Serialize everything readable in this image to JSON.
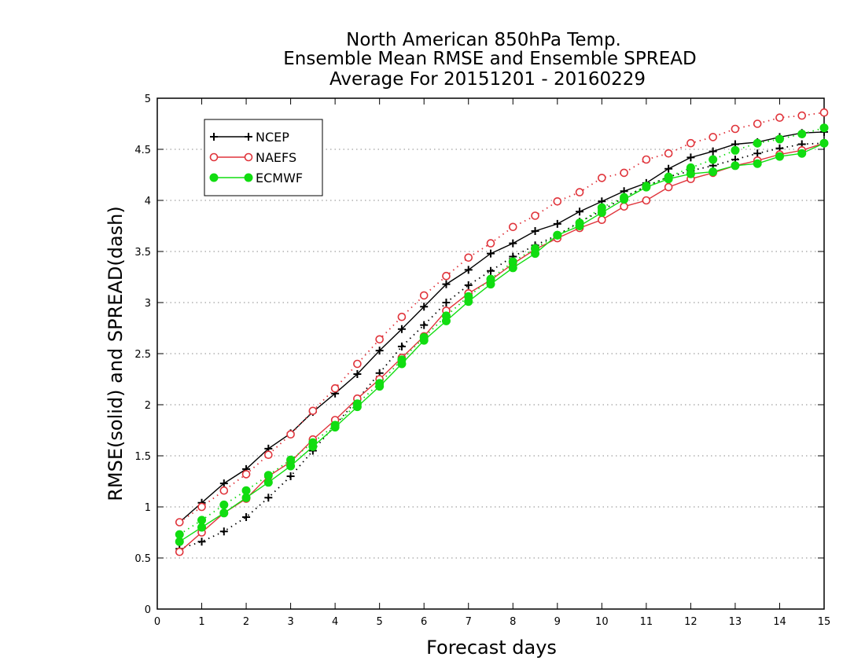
{
  "chart_data": {
    "type": "line",
    "title_lines": [
      "North American 850hPa Temp.",
      "Ensemble Mean RMSE and Ensemble SPREAD",
      "Average For 20151201 - 20160229"
    ],
    "xlabel": "Forecast days",
    "ylabel": "RMSE(solid) and SPREAD(dash)",
    "xlim": [
      0,
      15
    ],
    "ylim": [
      0,
      5
    ],
    "xticks": [
      "0",
      "1",
      "2",
      "3",
      "4",
      "5",
      "6",
      "7",
      "8",
      "9",
      "10",
      "11",
      "12",
      "13",
      "14",
      "15"
    ],
    "yticks": [
      "0",
      "0.5",
      "1",
      "1.5",
      "2",
      "2.5",
      "3",
      "3.5",
      "4",
      "4.5",
      "5"
    ],
    "grid": "horizontal dotted",
    "legend_position": "top-left",
    "x": [
      0.5,
      1,
      1.5,
      2,
      2.5,
      3,
      3.5,
      4,
      4.5,
      5,
      5.5,
      6,
      6.5,
      7,
      7.5,
      8,
      8.5,
      9,
      9.5,
      10,
      10.5,
      11,
      11.5,
      12,
      12.5,
      13,
      13.5,
      14,
      14.5,
      15
    ],
    "series": [
      {
        "name": "NCEP",
        "color": "#000000",
        "marker": "plus",
        "rmse": [
          0.85,
          1.04,
          1.23,
          1.37,
          1.57,
          1.72,
          1.93,
          2.11,
          2.3,
          2.53,
          2.74,
          2.96,
          3.18,
          3.32,
          3.48,
          3.58,
          3.7,
          3.77,
          3.89,
          3.99,
          4.09,
          4.17,
          4.31,
          4.42,
          4.48,
          4.55,
          4.57,
          4.62,
          4.66,
          4.67
        ],
        "spread": [
          0.59,
          0.66,
          0.76,
          0.9,
          1.09,
          1.3,
          1.55,
          1.8,
          2.05,
          2.31,
          2.57,
          2.78,
          3.0,
          3.17,
          3.31,
          3.45,
          3.56,
          3.66,
          3.79,
          3.9,
          4.03,
          4.14,
          4.23,
          4.29,
          4.34,
          4.4,
          4.46,
          4.51,
          4.55,
          4.56
        ]
      },
      {
        "name": "NAEFS",
        "color": "#e0343b",
        "marker": "circle",
        "rmse": [
          0.56,
          0.75,
          0.94,
          1.08,
          1.3,
          1.44,
          1.66,
          1.85,
          2.06,
          2.25,
          2.46,
          2.67,
          2.92,
          3.09,
          3.22,
          3.38,
          3.52,
          3.63,
          3.73,
          3.81,
          3.94,
          4.0,
          4.13,
          4.21,
          4.27,
          4.34,
          4.39,
          4.45,
          4.49,
          4.56
        ],
        "spread": [
          0.85,
          1.0,
          1.16,
          1.32,
          1.51,
          1.71,
          1.94,
          2.16,
          2.4,
          2.64,
          2.86,
          3.07,
          3.26,
          3.44,
          3.58,
          3.74,
          3.85,
          3.99,
          4.08,
          4.22,
          4.27,
          4.4,
          4.46,
          4.56,
          4.62,
          4.7,
          4.75,
          4.81,
          4.83,
          4.86
        ]
      },
      {
        "name": "ECMWF",
        "color": "#11dd11",
        "marker": "filled-circle",
        "rmse": [
          0.66,
          0.8,
          0.94,
          1.09,
          1.24,
          1.4,
          1.59,
          1.78,
          1.98,
          2.18,
          2.4,
          2.63,
          2.82,
          3.01,
          3.18,
          3.34,
          3.48,
          3.66,
          3.75,
          3.88,
          4.01,
          4.13,
          4.21,
          4.26,
          4.28,
          4.34,
          4.36,
          4.43,
          4.46,
          4.56
        ],
        "spread": [
          0.73,
          0.87,
          1.02,
          1.16,
          1.31,
          1.46,
          1.63,
          1.8,
          2.01,
          2.21,
          2.44,
          2.66,
          2.87,
          3.06,
          3.23,
          3.4,
          3.53,
          3.66,
          3.78,
          3.93,
          4.03,
          4.14,
          4.23,
          4.32,
          4.4,
          4.49,
          4.56,
          4.6,
          4.65,
          4.71
        ]
      }
    ]
  }
}
